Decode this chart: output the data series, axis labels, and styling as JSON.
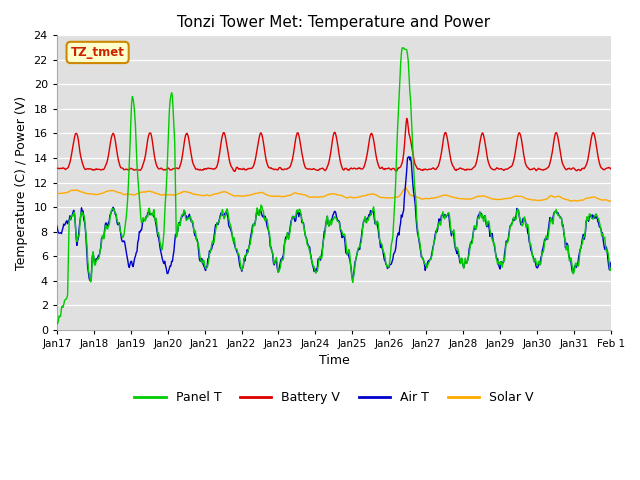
{
  "title": "Tonzi Tower Met: Temperature and Power",
  "xlabel": "Time",
  "ylabel": "Temperature (C) / Power (V)",
  "xlim": [
    0,
    15
  ],
  "ylim": [
    0,
    24
  ],
  "yticks": [
    0,
    2,
    4,
    6,
    8,
    10,
    12,
    14,
    16,
    18,
    20,
    22,
    24
  ],
  "xtick_labels": [
    "Jan 17",
    "Jan 18",
    "Jan 19",
    "Jan 20",
    "Jan 21",
    "Jan 22",
    "Jan 23",
    "Jan 24",
    "Jan 25",
    "Jan 26",
    "Jan 27",
    "Jan 28",
    "Jan 29",
    "Jan 30",
    "Jan 31",
    "Feb 1"
  ],
  "annotation_text": "TZ_tmet",
  "annotation_color": "#cc2200",
  "annotation_bg": "#ffffcc",
  "annotation_border": "#cc8800",
  "bg_color": "#e0e0e0",
  "colors": {
    "panel_t": "#00cc00",
    "battery_v": "#dd0000",
    "air_t": "#0000cc",
    "solar_v": "#ffaa00"
  },
  "legend_labels": [
    "Panel T",
    "Battery V",
    "Air T",
    "Solar V"
  ]
}
